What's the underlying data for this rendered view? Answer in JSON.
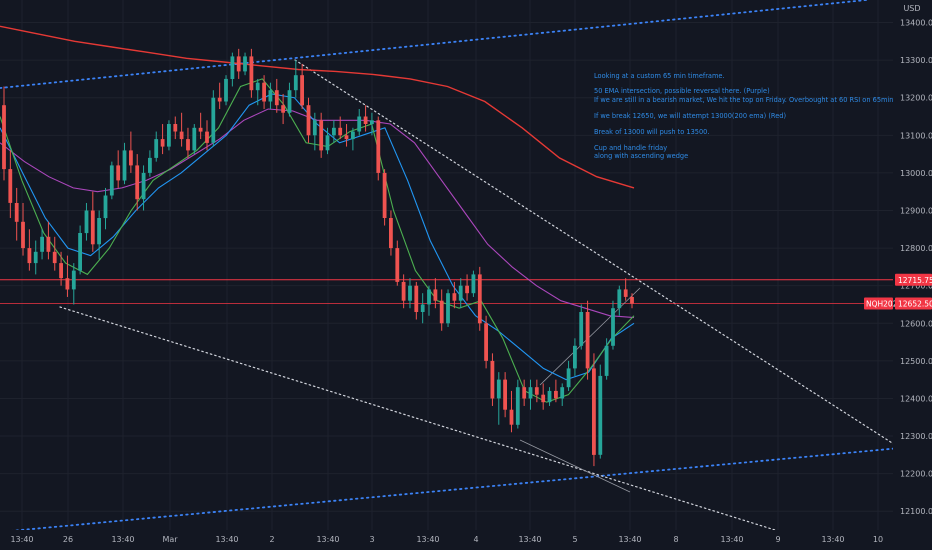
{
  "chart_data": {
    "type": "candlestick",
    "symbol": "NQH2021",
    "currency": "USD",
    "timeframe_note": "65 min",
    "ylim": [
      12050,
      13460
    ],
    "y_ticks": [
      13400,
      13300,
      13200,
      13100,
      13000,
      12900,
      12800,
      12700,
      12600,
      12500,
      12400,
      12300,
      12200,
      12100
    ],
    "y_tick_labels": [
      "13400.00",
      "13300.00",
      "13200.00",
      "13100.00",
      "13000.00",
      "12900.00",
      "12800.00",
      "12700.00",
      "12600.00",
      "12500.00",
      "12400.00",
      "12300.00",
      "12200.00",
      "12100.00"
    ],
    "x_tick_labels": [
      "13:40",
      "26",
      "13:40",
      "Mar",
      "13:40",
      "2",
      "13:40",
      "3",
      "13:40",
      "4",
      "13:40",
      "5",
      "13:40",
      "8",
      "13:40",
      "9",
      "13:40",
      "10"
    ],
    "price_tags": [
      {
        "label": "12715.75",
        "value": 12715.75,
        "color": "#f23645"
      },
      {
        "label": "NQH2021",
        "value": 12652.5,
        "color": "#f23645"
      },
      {
        "label": "12652.50",
        "value": 12652.5,
        "color": "#f23645"
      }
    ],
    "annotations": [
      "Looking at a custom 65 min timeframe.",
      "50 EMA intersection, possible reversal there. (Purple)",
      "If we are still in a bearish market, We hit the top on Friday. Overbought at 60 RSI on 65min.",
      "If we break 12650, we will attempt 13000(200 ema) (Red)",
      "Break of 13000 will push to 13500.",
      "Cup and handle friday",
      "along with ascending wedge"
    ],
    "candles_ohlc": [
      [
        13180,
        13230,
        12980,
        13010
      ],
      [
        13010,
        13060,
        12880,
        12920
      ],
      [
        12920,
        12960,
        12820,
        12870
      ],
      [
        12870,
        12920,
        12780,
        12800
      ],
      [
        12800,
        12850,
        12740,
        12760
      ],
      [
        12760,
        12820,
        12730,
        12790
      ],
      [
        12790,
        12850,
        12770,
        12830
      ],
      [
        12830,
        12870,
        12770,
        12790
      ],
      [
        12790,
        12830,
        12740,
        12760
      ],
      [
        12760,
        12790,
        12700,
        12720
      ],
      [
        12720,
        12780,
        12670,
        12690
      ],
      [
        12690,
        12760,
        12650,
        12740
      ],
      [
        12740,
        12860,
        12730,
        12840
      ],
      [
        12840,
        12920,
        12820,
        12900
      ],
      [
        12900,
        12950,
        12790,
        12810
      ],
      [
        12810,
        12900,
        12770,
        12880
      ],
      [
        12880,
        12960,
        12850,
        12940
      ],
      [
        12940,
        13030,
        12930,
        13020
      ],
      [
        13020,
        13060,
        12960,
        12980
      ],
      [
        12980,
        13080,
        12970,
        13060
      ],
      [
        13060,
        13110,
        13000,
        13020
      ],
      [
        13020,
        13050,
        12900,
        12930
      ],
      [
        12930,
        13020,
        12900,
        13000
      ],
      [
        13000,
        13060,
        12990,
        13040
      ],
      [
        13040,
        13110,
        13030,
        13090
      ],
      [
        13090,
        13130,
        13050,
        13070
      ],
      [
        13070,
        13140,
        13060,
        13130
      ],
      [
        13130,
        13150,
        13090,
        13110
      ],
      [
        13110,
        13160,
        13070,
        13090
      ],
      [
        13090,
        13120,
        13040,
        13060
      ],
      [
        13060,
        13130,
        13050,
        13120
      ],
      [
        13120,
        13160,
        13090,
        13110
      ],
      [
        13110,
        13140,
        13060,
        13080
      ],
      [
        13080,
        13220,
        13070,
        13200
      ],
      [
        13200,
        13240,
        13170,
        13190
      ],
      [
        13190,
        13260,
        13180,
        13250
      ],
      [
        13250,
        13320,
        13230,
        13310
      ],
      [
        13310,
        13330,
        13250,
        13270
      ],
      [
        13270,
        13320,
        13260,
        13310
      ],
      [
        13310,
        13330,
        13200,
        13220
      ],
      [
        13220,
        13250,
        13180,
        13240
      ],
      [
        13240,
        13260,
        13170,
        13190
      ],
      [
        13190,
        13240,
        13170,
        13220
      ],
      [
        13220,
        13250,
        13160,
        13180
      ],
      [
        13180,
        13210,
        13130,
        13160
      ],
      [
        13160,
        13240,
        13150,
        13220
      ],
      [
        13220,
        13300,
        13200,
        13260
      ],
      [
        13260,
        13290,
        13170,
        13180
      ],
      [
        13180,
        13200,
        13080,
        13100
      ],
      [
        13100,
        13160,
        13060,
        13140
      ],
      [
        13140,
        13160,
        13040,
        13060
      ],
      [
        13060,
        13120,
        13050,
        13100
      ],
      [
        13100,
        13140,
        13080,
        13120
      ],
      [
        13120,
        13150,
        13090,
        13100
      ],
      [
        13100,
        13130,
        13070,
        13090
      ],
      [
        13090,
        13120,
        13060,
        13110
      ],
      [
        13110,
        13170,
        13100,
        13150
      ],
      [
        13150,
        13180,
        13110,
        13130
      ],
      [
        13130,
        13160,
        13100,
        13140
      ],
      [
        13140,
        13150,
        12980,
        13000
      ],
      [
        13000,
        13010,
        12860,
        12880
      ],
      [
        12880,
        12900,
        12780,
        12800
      ],
      [
        12800,
        12820,
        12700,
        12710
      ],
      [
        12710,
        12730,
        12640,
        12660
      ],
      [
        12660,
        12720,
        12640,
        12700
      ],
      [
        12700,
        12710,
        12610,
        12630
      ],
      [
        12630,
        12680,
        12600,
        12650
      ],
      [
        12650,
        12700,
        12620,
        12690
      ],
      [
        12690,
        12720,
        12640,
        12660
      ],
      [
        12660,
        12690,
        12580,
        12600
      ],
      [
        12600,
        12690,
        12590,
        12680
      ],
      [
        12680,
        12710,
        12640,
        12660
      ],
      [
        12660,
        12720,
        12640,
        12700
      ],
      [
        12700,
        12730,
        12660,
        12680
      ],
      [
        12680,
        12740,
        12670,
        12730
      ],
      [
        12730,
        12750,
        12580,
        12600
      ],
      [
        12600,
        12620,
        12480,
        12500
      ],
      [
        12500,
        12520,
        12380,
        12400
      ],
      [
        12400,
        12470,
        12330,
        12450
      ],
      [
        12450,
        12470,
        12350,
        12370
      ],
      [
        12370,
        12420,
        12310,
        12330
      ],
      [
        12330,
        12450,
        12320,
        12430
      ],
      [
        12430,
        12450,
        12380,
        12400
      ],
      [
        12400,
        12450,
        12370,
        12430
      ],
      [
        12430,
        12450,
        12390,
        12410
      ],
      [
        12410,
        12440,
        12370,
        12390
      ],
      [
        12390,
        12430,
        12380,
        12420
      ],
      [
        12420,
        12450,
        12390,
        12400
      ],
      [
        12400,
        12440,
        12380,
        12430
      ],
      [
        12430,
        12500,
        12420,
        12480
      ],
      [
        12480,
        12560,
        12460,
        12540
      ],
      [
        12540,
        12650,
        12530,
        12630
      ],
      [
        12630,
        12660,
        12450,
        12480
      ],
      [
        12480,
        12520,
        12220,
        12250
      ],
      [
        12250,
        12490,
        12240,
        12460
      ],
      [
        12460,
        12560,
        12450,
        12540
      ],
      [
        12540,
        12660,
        12530,
        12640
      ],
      [
        12640,
        12700,
        12620,
        12690
      ],
      [
        12690,
        12720,
        12660,
        12670
      ],
      [
        12670,
        12680,
        12640,
        12652.5
      ]
    ],
    "series": [
      {
        "name": "",
        "color": "#e53935",
        "values": [
          13390,
          13370,
          13350,
          13335,
          13320,
          13305,
          13295,
          13285,
          13275,
          13270,
          13262,
          13250,
          13230,
          13190,
          13120,
          13040,
          12990,
          12960
        ]
      },
      {
        "name": "",
        "color": "#ab47bc",
        "values": [
          13080,
          13030,
          12990,
          12960,
          12950,
          12960,
          12980,
          13010,
          13050,
          13090,
          13140,
          13170,
          13165,
          13140,
          13140,
          13140,
          13130,
          13080,
          12990,
          12900,
          12810,
          12750,
          12700,
          12660,
          12640,
          12620,
          12615
        ]
      },
      {
        "name": "",
        "color": "#2196f3",
        "values": [
          13120,
          13000,
          12880,
          12800,
          12780,
          12830,
          12900,
          12960,
          13000,
          13050,
          13100,
          13180,
          13210,
          13200,
          13130,
          13080,
          13100,
          13120,
          12980,
          12820,
          12700,
          12620,
          12580,
          12530,
          12480,
          12450,
          12470,
          12560,
          12600
        ]
      },
      {
        "name": "",
        "color": "#4caf50",
        "values": [
          13150,
          12980,
          12840,
          12760,
          12730,
          12800,
          12900,
          12980,
          13020,
          13060,
          13120,
          13230,
          13250,
          13180,
          13080,
          13070,
          13110,
          13130,
          12900,
          12740,
          12660,
          12640,
          12660,
          12560,
          12420,
          12390,
          12410,
          12480,
          12560,
          12620
        ]
      }
    ]
  }
}
